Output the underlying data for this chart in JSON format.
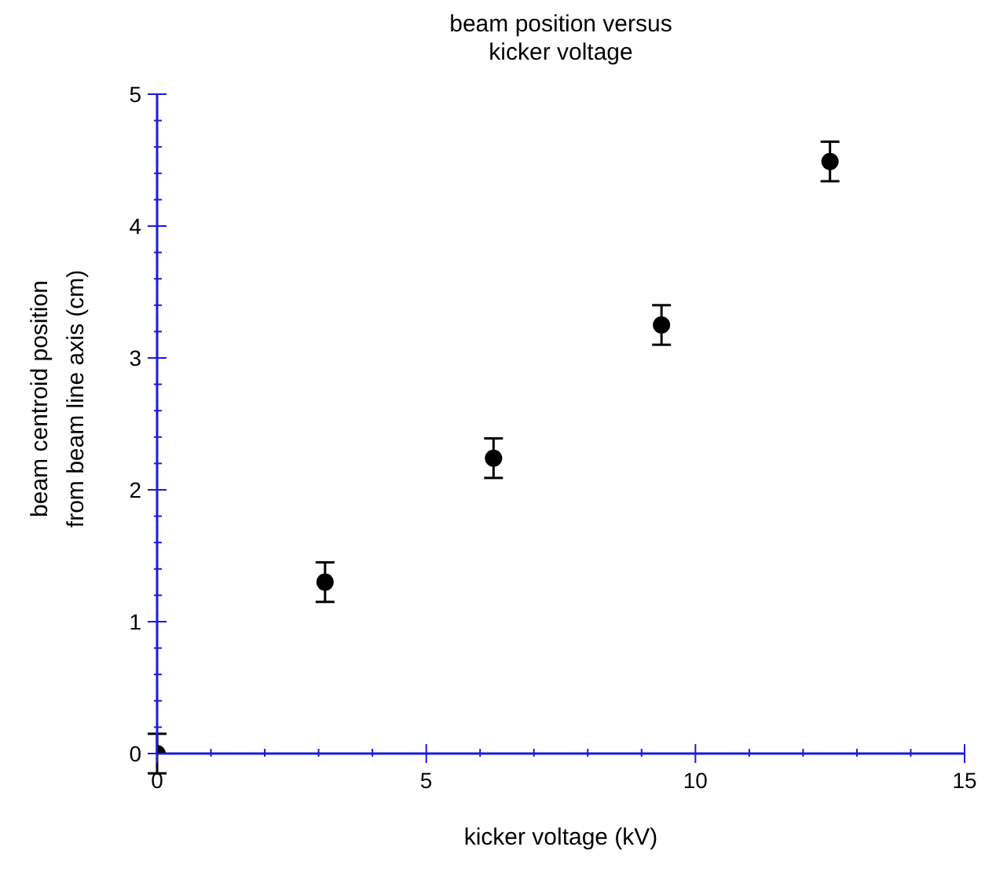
{
  "chart_data": {
    "type": "scatter",
    "title": "beam position versus\nkicker voltage",
    "xlabel": "kicker voltage (kV)",
    "ylabel": "beam centroid position\nfrom beam line axis (cm)",
    "x": [
      0,
      3.12,
      6.25,
      9.37,
      12.5
    ],
    "series": [
      {
        "color": "#000000",
        "values": [
          0,
          1.3,
          2.24,
          3.25,
          4.49
        ],
        "errors": [
          0.15,
          0.15,
          0.15,
          0.15,
          0.15
        ]
      }
    ],
    "marker": "circle",
    "grid": false,
    "legend": false,
    "xlim": [
      0,
      15
    ],
    "xticks": [
      0,
      {
        "value": 1,
        "label": null
      },
      {
        "value": 2,
        "label": null
      },
      {
        "value": 3,
        "label": null
      },
      {
        "value": 4,
        "label": null
      },
      5,
      {
        "value": 6,
        "label": null
      },
      {
        "value": 7,
        "label": null
      },
      {
        "value": 8,
        "label": null
      },
      {
        "value": 9,
        "label": null
      },
      10,
      {
        "value": 11,
        "label": null
      },
      {
        "value": 12,
        "label": null
      },
      {
        "value": 13,
        "label": null
      },
      {
        "value": 14,
        "label": null
      },
      15
    ],
    "ylim": [
      0,
      5
    ],
    "yticks": [
      0,
      {
        "value": 0.2,
        "label": null
      },
      {
        "value": 0.4,
        "label": null
      },
      {
        "value": 0.6,
        "label": null
      },
      {
        "value": 0.8,
        "label": null
      },
      1,
      {
        "value": 1.2,
        "label": null
      },
      {
        "value": 1.4,
        "label": null
      },
      {
        "value": 1.6,
        "label": null
      },
      {
        "value": 1.8,
        "label": null
      },
      2,
      {
        "value": 2.2,
        "label": null
      },
      {
        "value": 2.4,
        "label": null
      },
      {
        "value": 2.6,
        "label": null
      },
      {
        "value": 2.8,
        "label": null
      },
      3,
      {
        "value": 3.2,
        "label": null
      },
      {
        "value": 3.4,
        "label": null
      },
      {
        "value": 3.6,
        "label": null
      },
      {
        "value": 3.8,
        "label": null
      },
      4,
      {
        "value": 4.2,
        "label": null
      },
      {
        "value": 4.4,
        "label": null
      },
      {
        "value": 4.6,
        "label": null
      },
      {
        "value": 4.8,
        "label": null
      },
      5
    ]
  }
}
